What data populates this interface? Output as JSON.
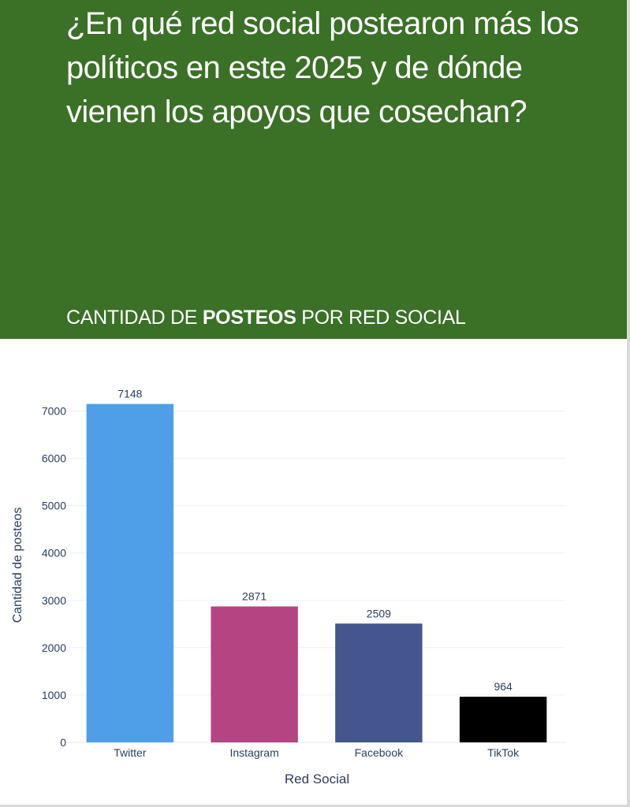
{
  "header": {
    "headline": "¿En qué red social postearon más los políticos en este 2025 y de dónde vienen los apoyos que cosechan?",
    "subtitle_prefix": "CANTIDAD DE ",
    "subtitle_bold": "POSTEOS",
    "subtitle_suffix": " POR RED SOCIAL",
    "background_color": "#3b7027",
    "text_color": "#ffffff"
  },
  "chart_data": {
    "type": "bar",
    "categories": [
      "Twitter",
      "Instagram",
      "Facebook",
      "TikTok"
    ],
    "values": [
      7148,
      2871,
      2509,
      964
    ],
    "value_labels": [
      "7148",
      "2871",
      "2509",
      "964"
    ],
    "colors": [
      "#4f9fe8",
      "#b44582",
      "#43578e",
      "#000000"
    ],
    "title": "",
    "xlabel": "Red Social",
    "ylabel": "Cantidad de posteos",
    "ylim": [
      0,
      7524
    ],
    "yticks": [
      0,
      1000,
      2000,
      3000,
      4000,
      5000,
      6000,
      7000
    ],
    "ytick_labels": [
      "0",
      "1000",
      "2000",
      "3000",
      "4000",
      "5000",
      "6000",
      "7000"
    ],
    "grid": true,
    "legend": "none"
  }
}
